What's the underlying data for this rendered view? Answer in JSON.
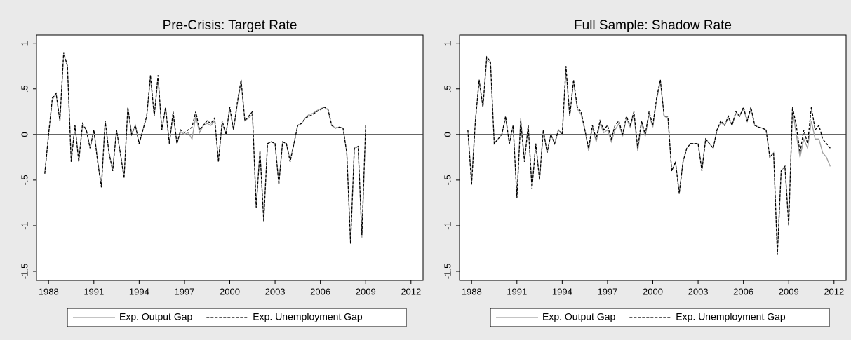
{
  "chart_data": [
    {
      "type": "line",
      "title": "Pre-Crisis: Target Rate",
      "x": [
        1987.75,
        1988,
        1988.25,
        1988.5,
        1988.75,
        1989,
        1989.25,
        1989.5,
        1989.75,
        1990,
        1990.25,
        1990.5,
        1990.75,
        1991,
        1991.25,
        1991.5,
        1991.75,
        1992,
        1992.25,
        1992.5,
        1992.75,
        1993,
        1993.25,
        1993.5,
        1993.75,
        1994,
        1994.25,
        1994.5,
        1994.75,
        1995,
        1995.25,
        1995.5,
        1995.75,
        1996,
        1996.25,
        1996.5,
        1996.75,
        1997,
        1997.25,
        1997.5,
        1997.75,
        1998,
        1998.25,
        1998.5,
        1998.75,
        1999,
        1999.25,
        1999.5,
        1999.75,
        2000,
        2000.25,
        2000.5,
        2000.75,
        2001,
        2001.25,
        2001.5,
        2001.75,
        2002,
        2002.25,
        2002.5,
        2002.75,
        2003,
        2003.25,
        2003.5,
        2003.75,
        2004,
        2004.25,
        2004.5,
        2004.75,
        2005,
        2005.25,
        2005.5,
        2005.75,
        2006,
        2006.25,
        2006.5,
        2006.75,
        2007,
        2007.25,
        2007.5,
        2007.75,
        2008,
        2008.25,
        2008.5,
        2008.75,
        2009
      ],
      "series": [
        {
          "name": "Exp. Output Gap",
          "color": "#a0a0a0",
          "style": "solid",
          "values": [
            -0.42,
            0.0,
            0.38,
            0.45,
            0.15,
            0.88,
            0.75,
            -0.28,
            0.1,
            -0.28,
            0.1,
            0.05,
            -0.15,
            0.05,
            -0.28,
            -0.56,
            0.15,
            -0.2,
            -0.38,
            0.05,
            -0.2,
            -0.46,
            0.28,
            0.0,
            0.1,
            -0.1,
            0.05,
            0.2,
            0.62,
            0.2,
            0.62,
            0.05,
            0.28,
            -0.1,
            0.22,
            -0.1,
            0.03,
            0.0,
            0.02,
            -0.05,
            0.2,
            0.02,
            0.1,
            0.12,
            0.1,
            0.15,
            -0.28,
            0.12,
            0.0,
            0.28,
            0.05,
            0.33,
            0.58,
            0.15,
            0.18,
            0.22,
            -0.78,
            -0.18,
            -0.93,
            -0.1,
            -0.08,
            -0.1,
            -0.53,
            -0.08,
            -0.1,
            -0.28,
            -0.1,
            0.1,
            0.12,
            0.18,
            0.22,
            0.23,
            0.26,
            0.28,
            0.3,
            0.27,
            0.1,
            0.07,
            0.08,
            0.07,
            -0.2,
            -1.18,
            -0.15,
            -0.13,
            -1.13,
            0.08
          ]
        },
        {
          "name": "Exp. Unemployment Gap",
          "color": "#000000",
          "style": "dashed",
          "values": [
            -0.43,
            0.0,
            0.4,
            0.45,
            0.15,
            0.9,
            0.75,
            -0.3,
            0.1,
            -0.3,
            0.12,
            0.05,
            -0.15,
            0.05,
            -0.3,
            -0.58,
            0.15,
            -0.2,
            -0.4,
            0.05,
            -0.2,
            -0.48,
            0.3,
            0.0,
            0.1,
            -0.1,
            0.05,
            0.2,
            0.65,
            0.2,
            0.65,
            0.05,
            0.3,
            -0.1,
            0.25,
            -0.1,
            0.05,
            0.02,
            0.05,
            0.08,
            0.25,
            0.05,
            0.1,
            0.15,
            0.12,
            0.18,
            -0.3,
            0.15,
            0.0,
            0.3,
            0.05,
            0.35,
            0.6,
            0.15,
            0.2,
            0.25,
            -0.8,
            -0.18,
            -0.95,
            -0.1,
            -0.08,
            -0.1,
            -0.55,
            -0.08,
            -0.1,
            -0.3,
            -0.1,
            0.1,
            0.12,
            0.18,
            0.2,
            0.22,
            0.25,
            0.27,
            0.3,
            0.28,
            0.1,
            0.07,
            0.08,
            0.07,
            -0.2,
            -1.2,
            -0.15,
            -0.13,
            -1.1,
            0.1
          ]
        }
      ],
      "xlim": [
        1987.2,
        2012.8
      ],
      "xticks": [
        1988,
        1991,
        1994,
        1997,
        2000,
        2003,
        2006,
        2009,
        2012
      ],
      "ylim": [
        -1.6,
        1.09
      ],
      "yticks": [
        1,
        {
          "value": 0.5,
          "label": ".5"
        },
        0,
        {
          "value": -0.5,
          "label": "-.5"
        },
        -1,
        -1.5
      ],
      "hline": 0,
      "legend": "bottom"
    },
    {
      "type": "line",
      "title": "Full Sample: Shadow Rate",
      "x": [
        1987.75,
        1988,
        1988.25,
        1988.5,
        1988.75,
        1989,
        1989.25,
        1989.5,
        1989.75,
        1990,
        1990.25,
        1990.5,
        1990.75,
        1991,
        1991.25,
        1991.5,
        1991.75,
        1992,
        1992.25,
        1992.5,
        1992.75,
        1993,
        1993.25,
        1993.5,
        1993.75,
        1994,
        1994.25,
        1994.5,
        1994.75,
        1995,
        1995.25,
        1995.5,
        1995.75,
        1996,
        1996.25,
        1996.5,
        1996.75,
        1997,
        1997.25,
        1997.5,
        1997.75,
        1998,
        1998.25,
        1998.5,
        1998.75,
        1999,
        1999.25,
        1999.5,
        1999.75,
        2000,
        2000.25,
        2000.5,
        2000.75,
        2001,
        2001.25,
        2001.5,
        2001.75,
        2002,
        2002.25,
        2002.5,
        2002.75,
        2003,
        2003.25,
        2003.5,
        2003.75,
        2004,
        2004.25,
        2004.5,
        2004.75,
        2005,
        2005.25,
        2005.5,
        2005.75,
        2006,
        2006.25,
        2006.5,
        2006.75,
        2007,
        2007.25,
        2007.5,
        2007.75,
        2008,
        2008.25,
        2008.5,
        2008.75,
        2009,
        2009.25,
        2009.5,
        2009.75,
        2010,
        2010.25,
        2010.5,
        2010.75,
        2011,
        2011.25,
        2011.5,
        2011.75
      ],
      "series": [
        {
          "name": "Exp. Output Gap",
          "color": "#a0a0a0",
          "style": "solid",
          "values": [
            0.05,
            -0.5,
            0.15,
            0.58,
            0.3,
            0.82,
            0.78,
            -0.1,
            -0.05,
            0.0,
            0.18,
            -0.1,
            0.1,
            -0.68,
            0.18,
            -0.28,
            0.1,
            -0.58,
            -0.1,
            -0.48,
            0.05,
            -0.2,
            0.0,
            -0.1,
            0.05,
            0.0,
            0.7,
            0.2,
            0.58,
            0.28,
            0.22,
            0.05,
            -0.18,
            0.08,
            -0.08,
            0.12,
            0.02,
            0.05,
            -0.08,
            0.05,
            0.12,
            -0.02,
            0.18,
            0.08,
            0.22,
            -0.18,
            0.12,
            -0.02,
            0.22,
            0.08,
            0.38,
            0.58,
            0.2,
            0.18,
            -0.4,
            -0.3,
            -0.63,
            -0.3,
            -0.15,
            -0.1,
            -0.1,
            -0.1,
            -0.38,
            -0.05,
            -0.1,
            -0.15,
            0.05,
            0.13,
            0.1,
            0.18,
            0.1,
            0.23,
            0.2,
            0.28,
            0.15,
            0.28,
            0.1,
            0.08,
            0.07,
            0.05,
            -0.25,
            -0.2,
            -1.3,
            -0.4,
            -0.35,
            -0.95,
            0.28,
            0.0,
            -0.25,
            -0.05,
            -0.15,
            0.15,
            -0.05,
            -0.05,
            -0.2,
            -0.25,
            -0.35
          ]
        },
        {
          "name": "Exp. Unemployment Gap",
          "color": "#000000",
          "style": "dashed",
          "values": [
            0.05,
            -0.55,
            0.15,
            0.6,
            0.3,
            0.85,
            0.8,
            -0.1,
            -0.05,
            0.0,
            0.2,
            -0.1,
            0.1,
            -0.7,
            0.15,
            -0.3,
            0.1,
            -0.6,
            -0.1,
            -0.5,
            0.05,
            -0.2,
            0.0,
            -0.1,
            0.05,
            0.0,
            0.75,
            0.2,
            0.6,
            0.3,
            0.25,
            0.05,
            -0.15,
            0.1,
            -0.05,
            0.15,
            0.05,
            0.1,
            -0.05,
            0.1,
            0.15,
            0.0,
            0.2,
            0.1,
            0.25,
            -0.15,
            0.15,
            0.0,
            0.25,
            0.1,
            0.4,
            0.6,
            0.2,
            0.2,
            -0.4,
            -0.3,
            -0.65,
            -0.3,
            -0.15,
            -0.1,
            -0.1,
            -0.1,
            -0.4,
            -0.05,
            -0.1,
            -0.15,
            0.05,
            0.15,
            0.1,
            0.2,
            0.1,
            0.25,
            0.2,
            0.3,
            0.15,
            0.3,
            0.1,
            0.08,
            0.07,
            0.05,
            -0.25,
            -0.2,
            -1.32,
            -0.4,
            -0.35,
            -1.0,
            0.3,
            0.1,
            -0.2,
            0.05,
            -0.1,
            0.3,
            0.05,
            0.1,
            -0.05,
            -0.1,
            -0.15
          ]
        }
      ],
      "xlim": [
        1987.2,
        2012.8
      ],
      "xticks": [
        1988,
        1991,
        1994,
        1997,
        2000,
        2003,
        2006,
        2009,
        2012
      ],
      "ylim": [
        -1.6,
        1.09
      ],
      "yticks": [
        1,
        {
          "value": 0.5,
          "label": ".5"
        },
        0,
        {
          "value": -0.5,
          "label": "-.5"
        },
        -1,
        -1.5
      ],
      "hline": 0,
      "legend": "bottom"
    }
  ]
}
